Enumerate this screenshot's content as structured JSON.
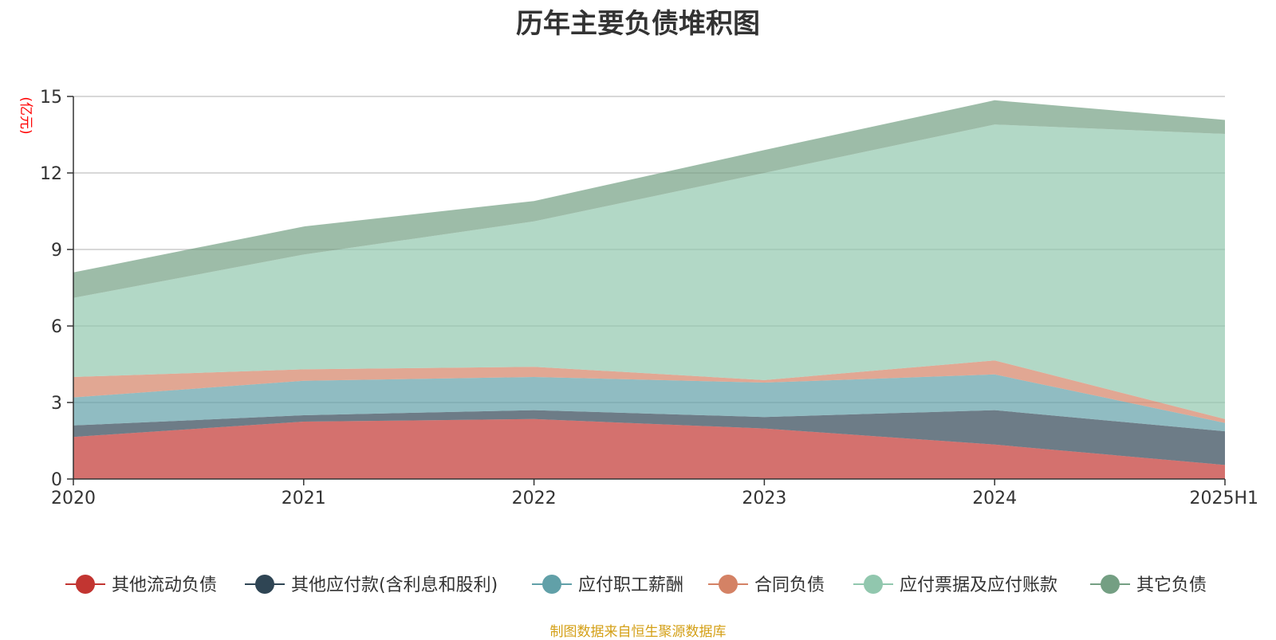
{
  "chart_data": {
    "type": "area",
    "title": "历年主要负债堆积图",
    "ylabel": "(亿元)",
    "xlabel": "",
    "categories": [
      "2020",
      "2021",
      "2022",
      "2023",
      "2024",
      "2025H1"
    ],
    "ylim": [
      0,
      15
    ],
    "yticks": [
      0,
      3,
      6,
      9,
      12,
      15
    ],
    "stacked": true,
    "grid": true,
    "legend_position": "bottom",
    "series": [
      {
        "name": "其他流动负债",
        "color": "#c23531",
        "values": [
          1.65,
          2.25,
          2.35,
          1.98,
          1.35,
          0.55
        ]
      },
      {
        "name": "其他应付款(含利息和股利)",
        "color": "#2f4554",
        "values": [
          0.45,
          0.25,
          0.35,
          0.45,
          1.35,
          1.32
        ]
      },
      {
        "name": "应付职工薪酬",
        "color": "#61a0a8",
        "values": [
          1.1,
          1.35,
          1.3,
          1.35,
          1.4,
          0.33
        ]
      },
      {
        "name": "合同负债",
        "color": "#d48265",
        "values": [
          0.8,
          0.45,
          0.4,
          0.1,
          0.55,
          0.15
        ]
      },
      {
        "name": "应付票据及应付账款",
        "color": "#91c7ae",
        "values": [
          3.1,
          4.5,
          5.7,
          8.12,
          9.25,
          11.18
        ]
      },
      {
        "name": "其它负债",
        "color": "#749f83",
        "values": [
          1.0,
          1.1,
          0.8,
          0.9,
          0.95,
          0.55
        ]
      }
    ]
  },
  "source_note": "制图数据来自恒生聚源数据库"
}
